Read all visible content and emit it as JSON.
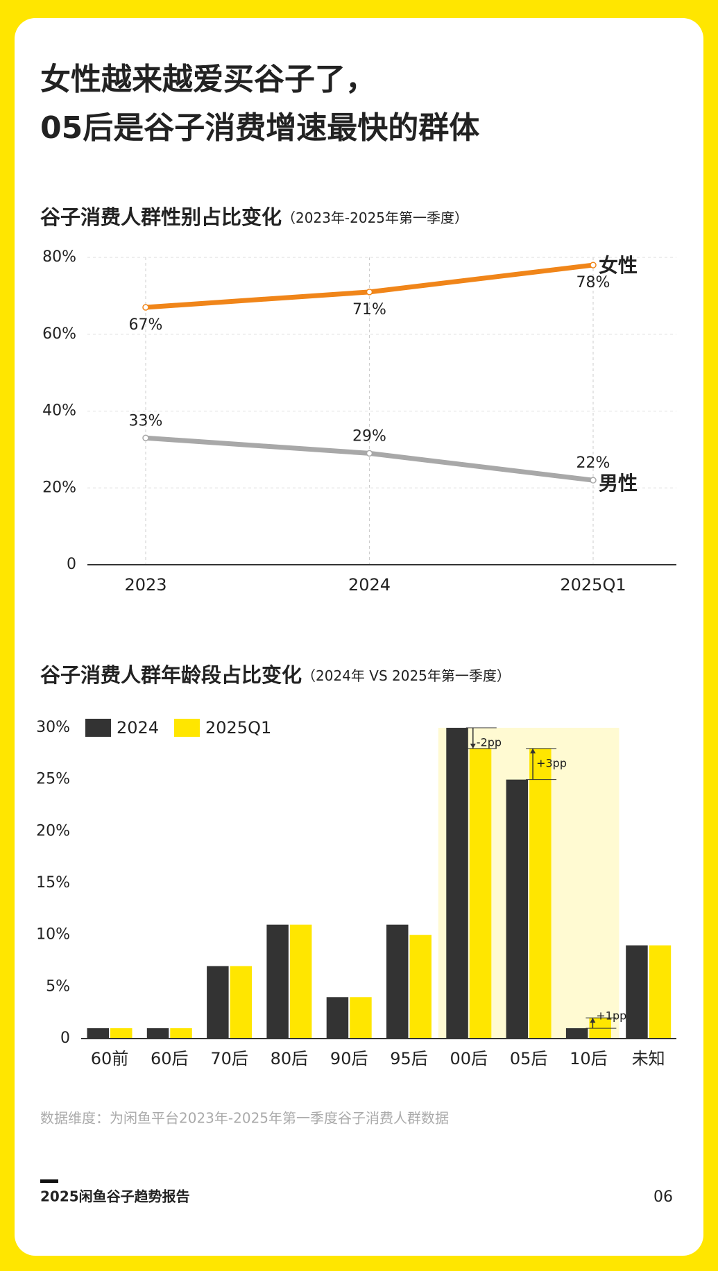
{
  "header": {
    "title_lines": [
      "女性越来越爱买谷子了，",
      "05后是谷子消费增速最快的群体"
    ]
  },
  "chart_data": [
    {
      "type": "line",
      "title": "谷子消费人群性别占比变化",
      "subtitle": "（2023年-2025年第一季度）",
      "categories": [
        "2023",
        "2024",
        "2025Q1"
      ],
      "series": [
        {
          "name": "女性",
          "color": "#f08519",
          "values": [
            67,
            71,
            78
          ],
          "value_labels": [
            "67%",
            "71%",
            "78%"
          ]
        },
        {
          "name": "男性",
          "color": "#a8a8a8",
          "values": [
            33,
            29,
            22
          ],
          "value_labels": [
            "33%",
            "29%",
            "22%"
          ]
        }
      ],
      "ylim": [
        0,
        80
      ],
      "yticks": [
        0,
        {
          "value": 20,
          "label": "20%"
        },
        {
          "value": 40,
          "label": "40%"
        },
        {
          "value": 60,
          "label": "60%"
        },
        {
          "value": 80,
          "label": "80%"
        }
      ],
      "grid": true
    },
    {
      "type": "bar",
      "title": "谷子消费人群年龄段占比变化",
      "subtitle": "（2024年 VS 2025年第一季度）",
      "categories": [
        "60前",
        "60后",
        "70后",
        "80后",
        "90后",
        "95后",
        "00后",
        "05后",
        "10后",
        "未知"
      ],
      "series": [
        {
          "name": "2024",
          "color": "#333333",
          "values": [
            1,
            1,
            7,
            11,
            4,
            11,
            30,
            25,
            1,
            9
          ]
        },
        {
          "name": "2025Q1",
          "color": "#ffe600",
          "values": [
            1,
            1,
            7,
            11,
            4,
            10,
            28,
            28,
            2,
            9
          ]
        }
      ],
      "ylim": [
        0,
        30
      ],
      "yticks": [
        0,
        {
          "value": 5,
          "label": "5%"
        },
        {
          "value": 10,
          "label": "10%"
        },
        {
          "value": 15,
          "label": "15%"
        },
        {
          "value": 20,
          "label": "20%"
        },
        {
          "value": 25,
          "label": "25%"
        },
        {
          "value": 30,
          "label": "30%"
        }
      ],
      "highlight_range": [
        6,
        8
      ],
      "annotations": [
        {
          "category": 6,
          "text": "-2pp"
        },
        {
          "category": 7,
          "text": "+3pp"
        },
        {
          "category": 8,
          "text": "+1pp"
        }
      ],
      "legend": "top-left"
    }
  ],
  "note": "数据维度：为闲鱼平台2023年-2025年第一季度谷子消费人群数据",
  "footer": {
    "report": "2025闲鱼谷子趋势报告",
    "page": "06"
  }
}
